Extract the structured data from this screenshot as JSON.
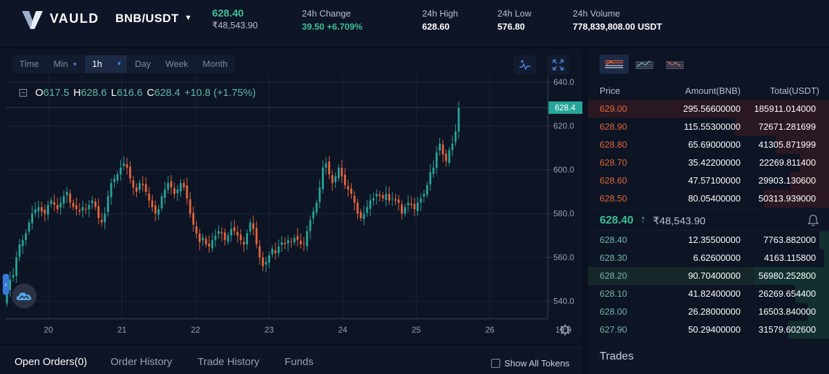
{
  "header": {
    "brand": "VAULD",
    "pair": "BNB/USDT",
    "last_price": "628.40",
    "last_price_inr": "₹48,543.90",
    "stats": [
      {
        "label": "24h Change",
        "value": "39.50  +6.709%",
        "green": true
      },
      {
        "label": "24h High",
        "value": "628.60",
        "green": false
      },
      {
        "label": "24h Low",
        "value": "576.80",
        "green": false
      },
      {
        "label": "24h Volume",
        "value": "778,839,808.00 USDT",
        "green": false
      }
    ]
  },
  "toolbar": {
    "items": [
      "Time",
      "Min",
      "1h",
      "Day",
      "Week",
      "Month"
    ],
    "selected": "1h"
  },
  "ohlc": {
    "o_label": "O",
    "o": "617.5",
    "h_label": "H",
    "h": "628.6",
    "l_label": "L",
    "l": "616.6",
    "c_label": "C",
    "c": "628.4",
    "change": "+10.8 (+1.75%)"
  },
  "chart_data": {
    "type": "candlestick",
    "pair": "BNB/USDT",
    "interval": "1h",
    "x_ticks": [
      "20",
      "21",
      "22",
      "23",
      "24",
      "25",
      "26",
      "19:0"
    ],
    "y_ticks": [
      "640.0",
      "620.0",
      "600.0",
      "580.0",
      "560.0",
      "540.0"
    ],
    "ylim": [
      532,
      641
    ],
    "last_price_label": "628.4",
    "closes": [
      545,
      550,
      552,
      560,
      566,
      568,
      571,
      576,
      580,
      582,
      583,
      581,
      580,
      584,
      586,
      584,
      582,
      585,
      588,
      590,
      585,
      583,
      582,
      581,
      583,
      582,
      584,
      586,
      583,
      578,
      576,
      580,
      588,
      594,
      596,
      598,
      601,
      603,
      601,
      596,
      592,
      590,
      594,
      593,
      590,
      586,
      583,
      580,
      582,
      588,
      591,
      594,
      592,
      589,
      591,
      594,
      592,
      587,
      580,
      575,
      571,
      567,
      569,
      566,
      565,
      568,
      570,
      572,
      571,
      568,
      570,
      573,
      572,
      570,
      568,
      566,
      571,
      576,
      573,
      566,
      560,
      556,
      558,
      561,
      564,
      562,
      565,
      567,
      566,
      568,
      567,
      569,
      568,
      566,
      566,
      572,
      577,
      581,
      585,
      592,
      601,
      603,
      598,
      594,
      597,
      601,
      597,
      593,
      591,
      589,
      585,
      580,
      578,
      580,
      583,
      586,
      587,
      589,
      588,
      587,
      589,
      586,
      587,
      586,
      585,
      580,
      583,
      585,
      584,
      582,
      585,
      587,
      589,
      593,
      599,
      601,
      608,
      612,
      607,
      604,
      609,
      612,
      617.5,
      628.4
    ],
    "up_color": "#26a69a",
    "down_color": "#e8643c"
  },
  "bottom_tabs": [
    "Open Orders(0)",
    "Order History",
    "Trade History",
    "Funds"
  ],
  "show_all_tokens": "Show All Tokens",
  "order_book": {
    "headers": {
      "price": "Price",
      "amount": "Amount(BNB)",
      "total": "Total(USDT)"
    },
    "asks": [
      {
        "price": "629.00",
        "amount": "295.56600000",
        "total": "185911.014000",
        "depth": 1.0
      },
      {
        "price": "628.90",
        "amount": "115.55300000",
        "total": "72671.281699",
        "depth": 0.39
      },
      {
        "price": "628.80",
        "amount": "65.69000000",
        "total": "41305.871999",
        "depth": 0.22
      },
      {
        "price": "628.70",
        "amount": "35.42200000",
        "total": "22269.811400",
        "depth": 0.12
      },
      {
        "price": "628.60",
        "amount": "47.57100000",
        "total": "29903.130600",
        "depth": 0.16
      },
      {
        "price": "628.50",
        "amount": "80.05400000",
        "total": "50313.939000",
        "depth": 0.27
      }
    ],
    "mid_price": "628.40",
    "mid_arrow": "↑",
    "mid_inr": "₹48,543.90",
    "bids": [
      {
        "price": "628.40",
        "amount": "12.35500000",
        "total": "7763.882000",
        "depth": 0.04
      },
      {
        "price": "628.30",
        "amount": "6.62600000",
        "total": "4163.115800",
        "depth": 0.02
      },
      {
        "price": "628.20",
        "amount": "90.70400000",
        "total": "56980.252800",
        "depth": 0.31,
        "highlight": true
      },
      {
        "price": "628.10",
        "amount": "41.82400000",
        "total": "26269.654400",
        "depth": 0.14
      },
      {
        "price": "628.00",
        "amount": "26.28000000",
        "total": "16503.840000",
        "depth": 0.09
      },
      {
        "price": "627.90",
        "amount": "50.29400000",
        "total": "31579.602600",
        "depth": 0.17
      }
    ]
  },
  "trades": {
    "title": "Trades"
  }
}
